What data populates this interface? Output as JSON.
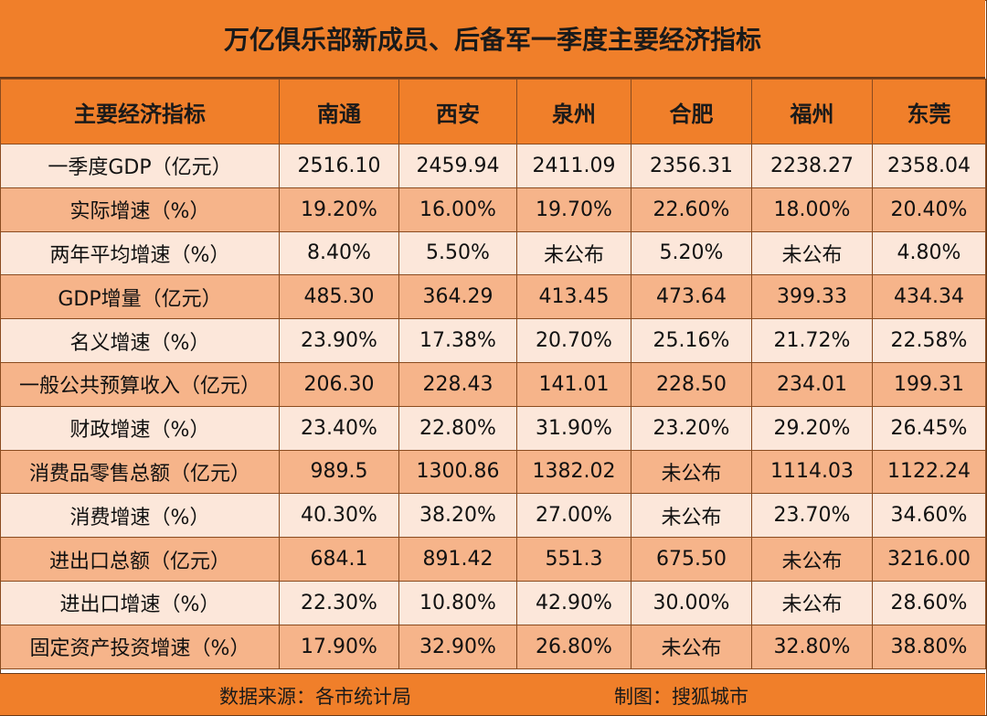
{
  "title": "万亿俱乐部新成员、后备军一季度主要经济指标",
  "footer": {
    "source": "数据来源：各市统计局",
    "credit": "制图：搜狐城市"
  },
  "chart_data": {
    "type": "table",
    "title": "万亿俱乐部新成员、后备军一季度主要经济指标",
    "columns": [
      "主要经济指标",
      "南通",
      "西安",
      "泉州",
      "合肥",
      "福州",
      "东莞"
    ],
    "rows": [
      [
        "一季度GDP（亿元）",
        "2516.10",
        "2459.94",
        "2411.09",
        "2356.31",
        "2238.27",
        "2358.04"
      ],
      [
        "实际增速（%）",
        "19.20%",
        "16.00%",
        "19.70%",
        "22.60%",
        "18.00%",
        "20.40%"
      ],
      [
        "两年平均增速（%）",
        "8.40%",
        "5.50%",
        "未公布",
        "5.20%",
        "未公布",
        "4.80%"
      ],
      [
        "GDP增量（亿元）",
        "485.30",
        "364.29",
        "413.45",
        "473.64",
        "399.33",
        "434.34"
      ],
      [
        "名义增速（%）",
        "23.90%",
        "17.38%",
        "20.70%",
        "25.16%",
        "21.72%",
        "22.58%"
      ],
      [
        "一般公共预算收入（亿元）",
        "206.30",
        "228.43",
        "141.01",
        "228.50",
        "234.01",
        "199.31"
      ],
      [
        "财政增速（%）",
        "23.40%",
        "22.80%",
        "31.90%",
        "23.20%",
        "29.20%",
        "26.45%"
      ],
      [
        "消费品零售总额（亿元）",
        "989.5",
        "1300.86",
        "1382.02",
        "未公布",
        "1114.03",
        "1122.24"
      ],
      [
        "消费增速（%）",
        "40.30%",
        "38.20%",
        "27.00%",
        "未公布",
        "23.70%",
        "34.60%"
      ],
      [
        "进出口总额（亿元）",
        "684.1",
        "891.42",
        "551.3",
        "675.50",
        "未公布",
        "3216.00"
      ],
      [
        "进出口增速（%）",
        "22.30%",
        "10.80%",
        "42.90%",
        "30.00%",
        "未公布",
        "28.60%"
      ],
      [
        "固定资产投资增速（%）",
        "17.90%",
        "32.90%",
        "26.80%",
        "未公布",
        "32.80%",
        "38.80%"
      ]
    ]
  },
  "colors": {
    "header_bg": "#f07f2a",
    "row_light": "#fce7da",
    "row_dark": "#f6b48a",
    "border": "#8a4b1f"
  }
}
